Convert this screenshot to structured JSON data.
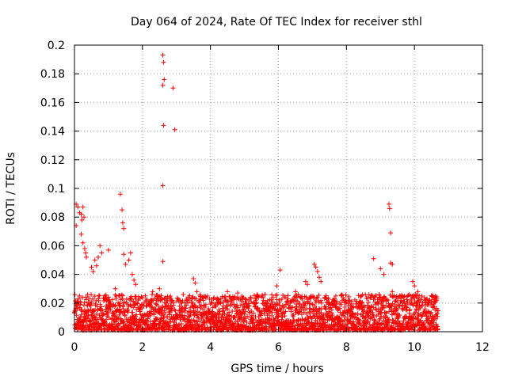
{
  "chart_data": {
    "type": "scatter",
    "title": "Day 064 of 2024, Rate Of TEC Index for receiver sthl",
    "xlabel": "GPS time / hours",
    "ylabel": "ROTI / TECUs",
    "xlim": [
      0,
      12
    ],
    "ylim": [
      0,
      0.2
    ],
    "xticks": [
      0,
      2,
      4,
      6,
      8,
      10,
      12
    ],
    "yticks": [
      0,
      0.02,
      0.04,
      0.06,
      0.08,
      0.1,
      0.12,
      0.14,
      0.16,
      0.18,
      0.2
    ],
    "xtick_labels": [
      "0",
      "2",
      "4",
      "6",
      "8",
      "10",
      "12"
    ],
    "ytick_labels": [
      "0",
      "0.02",
      "0.04",
      "0.06",
      "0.08",
      "0.1",
      "0.12",
      "0.14",
      "0.16",
      "0.18",
      "0.2"
    ],
    "grid": true,
    "marker": "+",
    "color": "#ff0000",
    "series": [
      {
        "name": "ROTI",
        "points": [
          [
            0.05,
            0.089
          ],
          [
            0.1,
            0.087
          ],
          [
            0.15,
            0.083
          ],
          [
            0.2,
            0.082
          ],
          [
            0.22,
            0.078
          ],
          [
            0.25,
            0.087
          ],
          [
            0.28,
            0.08
          ],
          [
            0.05,
            0.074
          ],
          [
            0.2,
            0.068
          ],
          [
            0.25,
            0.062
          ],
          [
            0.3,
            0.058
          ],
          [
            0.33,
            0.055
          ],
          [
            0.35,
            0.052
          ],
          [
            0.5,
            0.045
          ],
          [
            0.55,
            0.042
          ],
          [
            0.6,
            0.05
          ],
          [
            0.65,
            0.046
          ],
          [
            0.7,
            0.052
          ],
          [
            0.75,
            0.06
          ],
          [
            0.8,
            0.055
          ],
          [
            1.0,
            0.057
          ],
          [
            1.2,
            0.03
          ],
          [
            1.35,
            0.096
          ],
          [
            1.4,
            0.085
          ],
          [
            1.42,
            0.076
          ],
          [
            1.45,
            0.072
          ],
          [
            1.45,
            0.054
          ],
          [
            1.5,
            0.047
          ],
          [
            1.6,
            0.05
          ],
          [
            1.65,
            0.055
          ],
          [
            1.7,
            0.04
          ],
          [
            1.75,
            0.036
          ],
          [
            1.8,
            0.033
          ],
          [
            2.3,
            0.028
          ],
          [
            2.5,
            0.03
          ],
          [
            2.6,
            0.193
          ],
          [
            2.62,
            0.188
          ],
          [
            2.64,
            0.176
          ],
          [
            2.6,
            0.172
          ],
          [
            2.9,
            0.17
          ],
          [
            2.62,
            0.144
          ],
          [
            2.95,
            0.141
          ],
          [
            2.6,
            0.102
          ],
          [
            2.6,
            0.049
          ],
          [
            3.2,
            0.026
          ],
          [
            3.5,
            0.037
          ],
          [
            3.55,
            0.034
          ],
          [
            3.6,
            0.028
          ],
          [
            4.5,
            0.028
          ],
          [
            4.8,
            0.027
          ],
          [
            5.95,
            0.032
          ],
          [
            6.05,
            0.043
          ],
          [
            6.5,
            0.028
          ],
          [
            6.8,
            0.035
          ],
          [
            6.85,
            0.033
          ],
          [
            7.05,
            0.047
          ],
          [
            7.1,
            0.045
          ],
          [
            7.15,
            0.042
          ],
          [
            7.2,
            0.038
          ],
          [
            7.25,
            0.035
          ],
          [
            8.8,
            0.051
          ],
          [
            9.0,
            0.044
          ],
          [
            9.1,
            0.04
          ],
          [
            9.25,
            0.089
          ],
          [
            9.27,
            0.086
          ],
          [
            9.3,
            0.069
          ],
          [
            9.3,
            0.048
          ],
          [
            9.35,
            0.047
          ],
          [
            9.35,
            0.028
          ],
          [
            9.95,
            0.035
          ],
          [
            10.0,
            0.032
          ],
          [
            10.1,
            0.028
          ]
        ],
        "baseline_band": {
          "x_range": [
            0,
            10.7
          ],
          "y_range": [
            0.001,
            0.026
          ]
        }
      }
    ]
  }
}
